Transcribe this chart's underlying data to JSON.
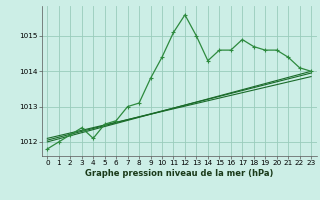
{
  "bg_color": "#cceee6",
  "grid_color": "#99ccbb",
  "line_color": "#1a6b2a",
  "line_color2": "#2d8a3e",
  "xlabel": "Graphe pression niveau de la mer (hPa)",
  "xlim": [
    -0.5,
    23.5
  ],
  "ylim": [
    1011.6,
    1015.85
  ],
  "yticks": [
    1012,
    1013,
    1014,
    1015
  ],
  "xticks": [
    0,
    1,
    2,
    3,
    4,
    5,
    6,
    7,
    8,
    9,
    10,
    11,
    12,
    13,
    14,
    15,
    16,
    17,
    18,
    19,
    20,
    21,
    22,
    23
  ],
  "series1_x": [
    0,
    1,
    2,
    3,
    4,
    5,
    6,
    7,
    8,
    9,
    10,
    11,
    12,
    13,
    14,
    15,
    16,
    17,
    18,
    19,
    20,
    21,
    22,
    23
  ],
  "series1_y": [
    1011.8,
    1012.0,
    1012.2,
    1012.4,
    1012.1,
    1012.5,
    1012.6,
    1013.0,
    1013.1,
    1013.8,
    1014.4,
    1015.1,
    1015.6,
    1015.0,
    1014.3,
    1014.6,
    1014.6,
    1014.9,
    1014.7,
    1014.6,
    1014.6,
    1014.4,
    1014.1,
    1014.0
  ],
  "series2_x": [
    0,
    23
  ],
  "series2_y": [
    1012.0,
    1014.0
  ],
  "series3_x": [
    0,
    23
  ],
  "series3_y": [
    1012.1,
    1013.85
  ],
  "series4_x": [
    0,
    23
  ],
  "series4_y": [
    1012.05,
    1013.95
  ],
  "xlabel_fontsize": 6.0,
  "tick_fontsize": 5.2
}
